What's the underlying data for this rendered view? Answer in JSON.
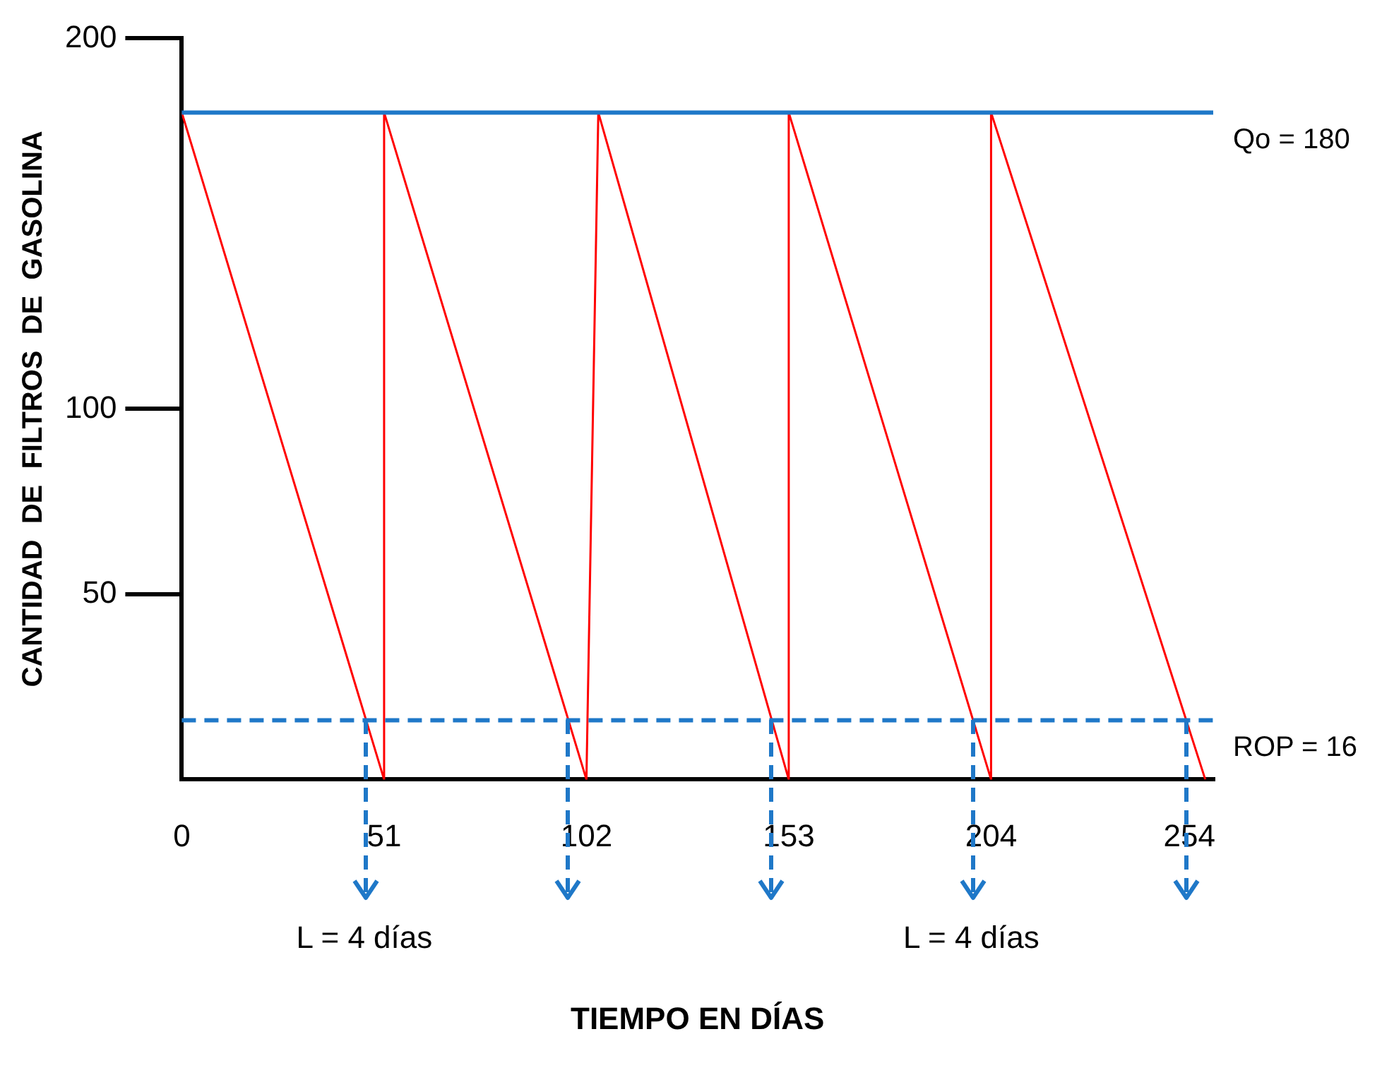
{
  "chart_data": {
    "type": "line",
    "xlabel": "TIEMPO EN DÍAS",
    "ylabel": "CANTIDAD  DE  FILTROS  DE  GASOLINA",
    "x": [
      0,
      51,
      51,
      102,
      105,
      153,
      153,
      204,
      204,
      258
    ],
    "series": [
      {
        "color": "#ff0000",
        "values": [
          180,
          0,
          180,
          0,
          180,
          0,
          180,
          0,
          180,
          0
        ]
      }
    ],
    "xlim": [
      0,
      260
    ],
    "xticks": [
      0,
      51,
      102,
      153,
      204,
      254
    ],
    "ylim": [
      0,
      200
    ],
    "yticks": [
      50,
      100,
      200
    ],
    "grid": false,
    "legend": false,
    "marker": "none",
    "line_style": "solid",
    "ref_lines": [
      {
        "axis": "y",
        "value": 180,
        "label": "Qo = 180",
        "color": "#1f78c8",
        "line_style": "solid"
      },
      {
        "axis": "y",
        "value": 16,
        "label": "ROP = 16",
        "color": "#1f78c8",
        "line_style": "dashed"
      }
    ],
    "annotations": [
      {
        "text": "L = 4 días",
        "x": 46,
        "y": 16
      },
      {
        "text": "L = 4 días",
        "x": 199,
        "y": 16
      }
    ]
  }
}
